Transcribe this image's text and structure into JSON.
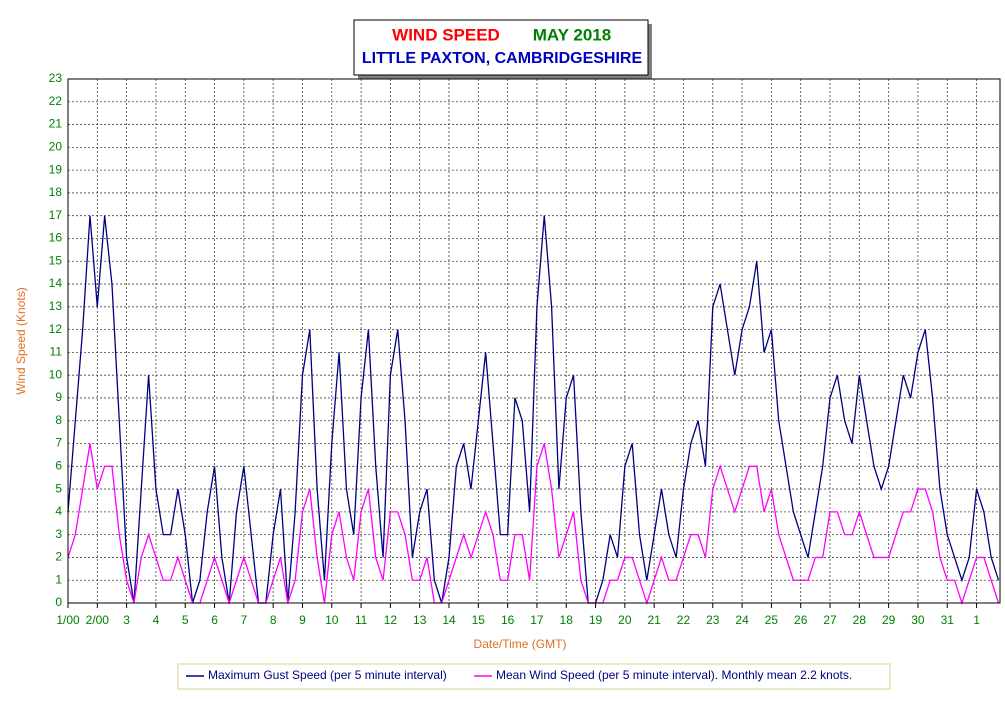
{
  "chart_data": {
    "type": "line",
    "title": "WIND SPEED",
    "title_month": "MAY 2018",
    "subtitle": "LITTLE PAXTON, CAMBRIDGESHIRE",
    "xlabel": "Date/Time (GMT)",
    "ylabel": "Wind Speed (Knots)",
    "xlim": [
      0,
      31.8
    ],
    "ylim": [
      0,
      23
    ],
    "xticks": [
      {
        "value": 0,
        "label": "1/00"
      },
      {
        "value": 1,
        "label": "2/00"
      },
      {
        "value": 2,
        "label": "3"
      },
      {
        "value": 3,
        "label": "4"
      },
      {
        "value": 4,
        "label": "5"
      },
      {
        "value": 5,
        "label": "6"
      },
      {
        "value": 6,
        "label": "7"
      },
      {
        "value": 7,
        "label": "8"
      },
      {
        "value": 8,
        "label": "9"
      },
      {
        "value": 9,
        "label": "10"
      },
      {
        "value": 10,
        "label": "11"
      },
      {
        "value": 11,
        "label": "12"
      },
      {
        "value": 12,
        "label": "13"
      },
      {
        "value": 13,
        "label": "14"
      },
      {
        "value": 14,
        "label": "15"
      },
      {
        "value": 15,
        "label": "16"
      },
      {
        "value": 16,
        "label": "17"
      },
      {
        "value": 17,
        "label": "18"
      },
      {
        "value": 18,
        "label": "19"
      },
      {
        "value": 19,
        "label": "20"
      },
      {
        "value": 20,
        "label": "21"
      },
      {
        "value": 21,
        "label": "22"
      },
      {
        "value": 22,
        "label": "23"
      },
      {
        "value": 23,
        "label": "24"
      },
      {
        "value": 24,
        "label": "25"
      },
      {
        "value": 25,
        "label": "26"
      },
      {
        "value": 26,
        "label": "27"
      },
      {
        "value": 27,
        "label": "28"
      },
      {
        "value": 28,
        "label": "29"
      },
      {
        "value": 29,
        "label": "30"
      },
      {
        "value": 30,
        "label": "31"
      },
      {
        "value": 31,
        "label": "1"
      }
    ],
    "yticks": [
      0,
      1,
      2,
      3,
      4,
      5,
      6,
      7,
      8,
      9,
      10,
      11,
      12,
      13,
      14,
      15,
      16,
      17,
      18,
      19,
      20,
      21,
      22,
      23
    ],
    "grid": true,
    "x": [
      0,
      0.25,
      0.5,
      0.75,
      1,
      1.25,
      1.5,
      1.75,
      2,
      2.25,
      2.5,
      2.75,
      3,
      3.25,
      3.5,
      3.75,
      4,
      4.25,
      4.5,
      4.75,
      5,
      5.25,
      5.5,
      5.75,
      6,
      6.25,
      6.5,
      6.75,
      7,
      7.25,
      7.5,
      7.75,
      8,
      8.25,
      8.5,
      8.75,
      9,
      9.25,
      9.5,
      9.75,
      10,
      10.25,
      10.5,
      10.75,
      11,
      11.25,
      11.5,
      11.75,
      12,
      12.25,
      12.5,
      12.75,
      13,
      13.25,
      13.5,
      13.75,
      14,
      14.25,
      14.5,
      14.75,
      15,
      15.25,
      15.5,
      15.75,
      16,
      16.25,
      16.5,
      16.75,
      17,
      17.25,
      17.5,
      17.75,
      18,
      18.25,
      18.5,
      18.75,
      19,
      19.25,
      19.5,
      19.75,
      20,
      20.25,
      20.5,
      20.75,
      21,
      21.25,
      21.5,
      21.75,
      22,
      22.25,
      22.5,
      22.75,
      23,
      23.25,
      23.5,
      23.75,
      24,
      24.25,
      24.5,
      24.75,
      25,
      25.25,
      25.5,
      25.75,
      26,
      26.25,
      26.5,
      26.75,
      27,
      27.25,
      27.5,
      27.75,
      28,
      28.25,
      28.5,
      28.75,
      29,
      29.25,
      29.5,
      29.75,
      30,
      30.25,
      30.5,
      30.75,
      31,
      31.25,
      31.5,
      31.75
    ],
    "series": [
      {
        "name": "Maximum Gust Speed (per 5 minute interval)",
        "color": "#000080",
        "values": [
          4,
          8,
          12,
          17,
          13,
          17,
          14,
          8,
          2,
          0,
          5,
          10,
          5,
          3,
          3,
          5,
          3,
          0,
          1,
          4,
          6,
          2,
          0,
          4,
          6,
          3,
          0,
          0,
          3,
          5,
          0,
          4,
          10,
          12,
          5,
          1,
          7,
          11,
          5,
          3,
          9,
          12,
          6,
          2,
          10,
          12,
          8,
          2,
          4,
          5,
          1,
          0,
          2,
          6,
          7,
          5,
          8,
          11,
          7,
          3,
          3,
          9,
          8,
          4,
          13,
          17,
          13,
          5,
          9,
          10,
          4,
          0,
          0,
          1,
          3,
          2,
          6,
          7,
          3,
          1,
          3,
          5,
          3,
          2,
          5,
          7,
          8,
          6,
          13,
          14,
          12,
          10,
          12,
          13,
          15,
          11,
          12,
          8,
          6,
          4,
          3,
          2,
          4,
          6,
          9,
          10,
          8,
          7,
          10,
          8,
          6,
          5,
          6,
          8,
          10,
          9,
          11,
          12,
          9,
          5,
          3,
          2,
          1,
          2,
          5,
          4,
          2,
          1
        ]
      },
      {
        "name": "Mean Wind Speed (per 5 minute interval). Monthly mean 2.2 knots.",
        "color": "#ff00ff",
        "values": [
          2,
          3,
          5,
          7,
          5,
          6,
          6,
          3,
          1,
          0,
          2,
          3,
          2,
          1,
          1,
          2,
          1,
          0,
          0,
          1,
          2,
          1,
          0,
          1,
          2,
          1,
          0,
          0,
          1,
          2,
          0,
          1,
          4,
          5,
          2,
          0,
          3,
          4,
          2,
          1,
          4,
          5,
          2,
          1,
          4,
          4,
          3,
          1,
          1,
          2,
          0,
          0,
          1,
          2,
          3,
          2,
          3,
          4,
          3,
          1,
          1,
          3,
          3,
          1,
          6,
          7,
          5,
          2,
          3,
          4,
          1,
          0,
          0,
          0,
          1,
          1,
          2,
          2,
          1,
          0,
          1,
          2,
          1,
          1,
          2,
          3,
          3,
          2,
          5,
          6,
          5,
          4,
          5,
          6,
          6,
          4,
          5,
          3,
          2,
          1,
          1,
          1,
          2,
          2,
          4,
          4,
          3,
          3,
          4,
          3,
          2,
          2,
          2,
          3,
          4,
          4,
          5,
          5,
          4,
          2,
          1,
          1,
          0,
          1,
          2,
          2,
          1,
          0
        ]
      }
    ]
  }
}
